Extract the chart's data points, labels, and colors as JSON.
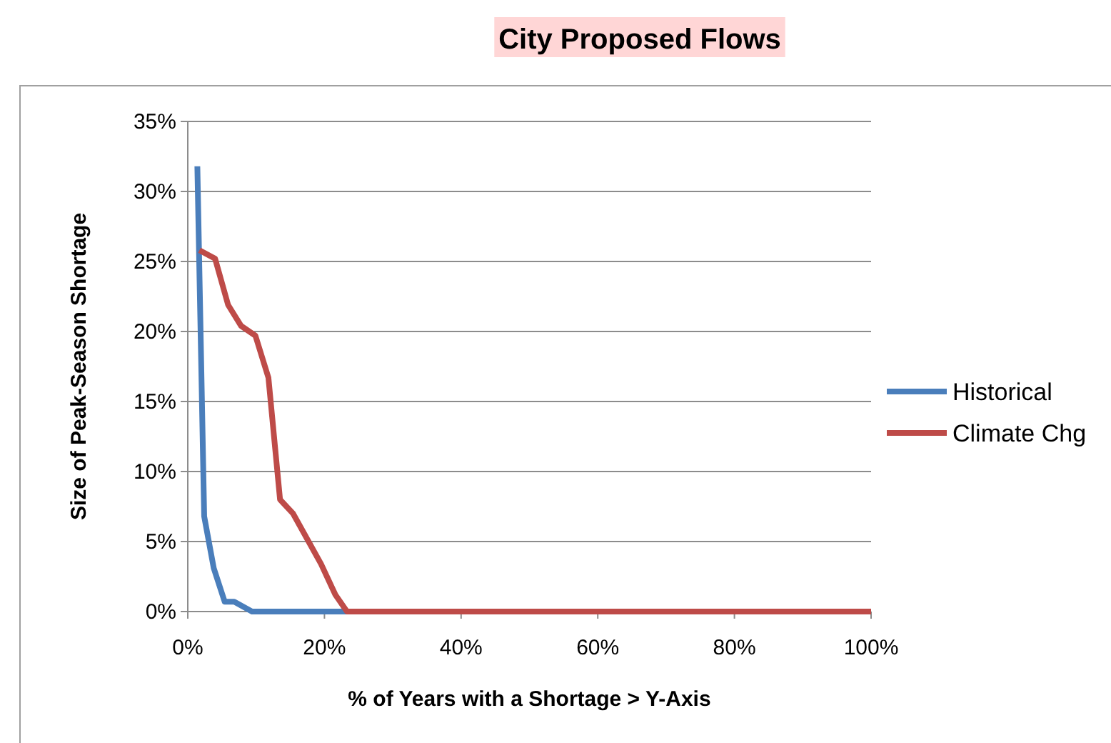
{
  "chart_data": {
    "type": "line",
    "title": "City Proposed Flows",
    "xlabel": "% of Years with a Shortage > Y-Axis",
    "ylabel": "Size of Peak-Season Shortage",
    "xlim": [
      0,
      1
    ],
    "xticks": [
      {
        "value": 0,
        "label": "0%"
      },
      {
        "value": 0.2,
        "label": "20%"
      },
      {
        "value": 0.4,
        "label": "40%"
      },
      {
        "value": 0.6,
        "label": "60%"
      },
      {
        "value": 0.8,
        "label": "80%"
      },
      {
        "value": 1,
        "label": "100%"
      }
    ],
    "ylim": [
      0,
      0.35
    ],
    "yticks": [
      {
        "value": 0,
        "label": "0%"
      },
      {
        "value": 0.05,
        "label": "5%"
      },
      {
        "value": 0.1,
        "label": "10%"
      },
      {
        "value": 0.15,
        "label": "15%"
      },
      {
        "value": 0.2,
        "label": "20%"
      },
      {
        "value": 0.25,
        "label": "25%"
      },
      {
        "value": 0.3,
        "label": "30%"
      },
      {
        "value": 0.35,
        "label": "35%"
      }
    ],
    "grid": "y",
    "legend": "right",
    "marker": "none",
    "line_style": "solid",
    "series": [
      {
        "name": "Historical",
        "color": "#4a7ebb",
        "x": [
          0.014,
          0.024,
          0.038,
          0.054,
          0.068,
          0.094,
          1
        ],
        "values": [
          0.318,
          0.068,
          0.031,
          0.007,
          0.007,
          0,
          0
        ]
      },
      {
        "name": "Climate Chg",
        "color": "#be4b48",
        "x": [
          0.017,
          0.04,
          0.059,
          0.078,
          0.099,
          0.118,
          0.135,
          0.154,
          0.195,
          0.216,
          0.233,
          1
        ],
        "values": [
          0.258,
          0.252,
          0.219,
          0.204,
          0.197,
          0.167,
          0.08,
          0.07,
          0.034,
          0.012,
          0,
          0
        ]
      }
    ]
  }
}
